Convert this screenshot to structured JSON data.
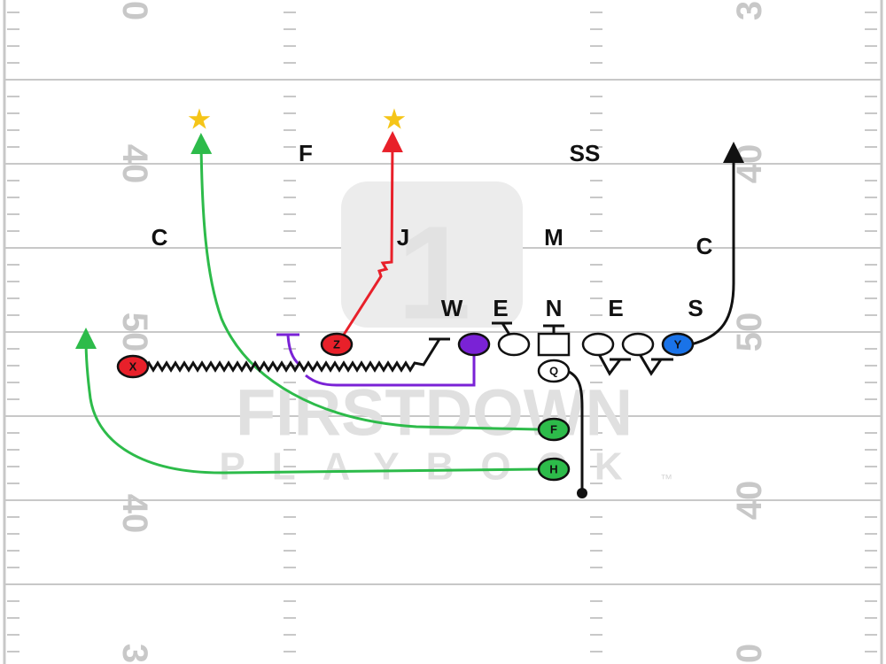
{
  "field": {
    "yard_numbers_left": [
      "0",
      "40",
      "50",
      "40",
      "3"
    ],
    "yard_numbers_right": [
      "3",
      "40",
      "50",
      "40",
      "0"
    ]
  },
  "defense": [
    {
      "label": "F"
    },
    {
      "label": "SS"
    },
    {
      "label": "C"
    },
    {
      "label": "J"
    },
    {
      "label": "M"
    },
    {
      "label": "C"
    },
    {
      "label": "W"
    },
    {
      "label": "E"
    },
    {
      "label": "N"
    },
    {
      "label": "E"
    },
    {
      "label": "S"
    }
  ],
  "offense": [
    {
      "label": "X"
    },
    {
      "label": "Z"
    },
    {
      "label": "Q"
    },
    {
      "label": "F"
    },
    {
      "label": "H"
    },
    {
      "label": "Y"
    }
  ],
  "watermark": {
    "brand": "FIRSTDOWN",
    "subtitle": "PLAYBOOK",
    "trademark": "™"
  }
}
